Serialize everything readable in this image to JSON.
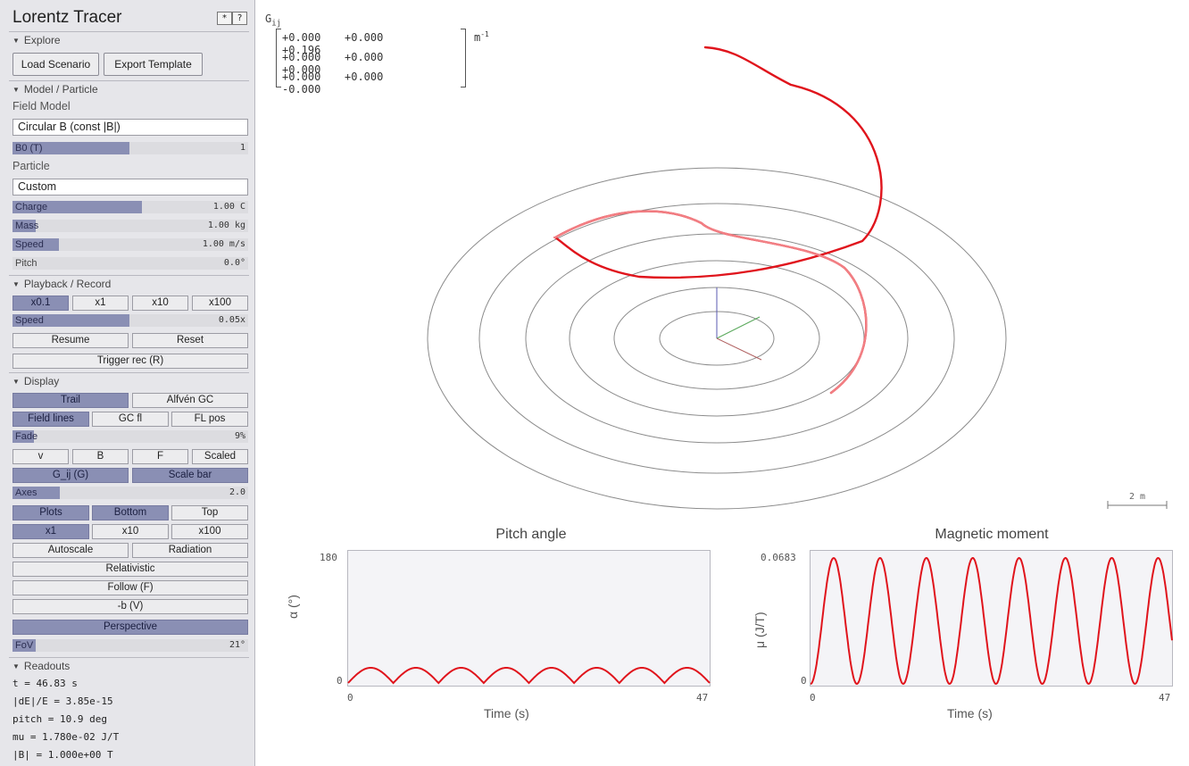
{
  "app": {
    "title": "Lorentz Tracer",
    "btn_star": "*",
    "btn_help": "?"
  },
  "sidebar": {
    "explore": {
      "heading": "Explore",
      "load": "Load Scenario",
      "export": "Export Template"
    },
    "model": {
      "heading": "Model / Particle",
      "field_model_label": "Field Model",
      "field_model_value": "Circular B (const |B|)",
      "b0": {
        "name": "B0 (T)",
        "value": "1",
        "fraction": 0.5
      },
      "particle_label": "Particle",
      "particle_value": "Custom",
      "charge": {
        "name": "Charge",
        "value": "1.00 C",
        "fraction": 0.55
      },
      "mass": {
        "name": "Mass",
        "value": "1.00 kg",
        "fraction": 0.1
      },
      "speed": {
        "name": "Speed",
        "value": "1.00 m/s",
        "fraction": 0.2
      },
      "pitch": {
        "name": "Pitch",
        "value": "0.0°",
        "fraction": 0.0
      }
    },
    "playback": {
      "heading": "Playback / Record",
      "rates": [
        "x0.1",
        "x1",
        "x10",
        "x100"
      ],
      "speed": {
        "name": "Speed",
        "value": "0.05x",
        "fraction": 0.5
      },
      "resume": "Resume",
      "reset": "Reset",
      "trigger": "Trigger rec (R)"
    },
    "display": {
      "heading": "Display",
      "trail": "Trail",
      "alfven": "Alfvén GC",
      "field_lines": "Field lines",
      "gc_fl": "GC fl",
      "fl_pos": "FL pos",
      "fade": {
        "name": "Fade",
        "value": "9%",
        "fraction": 0.09
      },
      "v": "v",
      "b": "B",
      "f": "F",
      "scaled": "Scaled",
      "gij": "G_ij (G)",
      "scale_bar": "Scale bar",
      "axes": {
        "name": "Axes",
        "value": "2.0",
        "fraction": 0.2
      },
      "plots": "Plots",
      "bottom": "Bottom",
      "top": "Top",
      "x1": "x1",
      "x10": "x10",
      "x100": "x100",
      "autoscale": "Autoscale",
      "radiation": "Radiation",
      "relativistic": "Relativistic",
      "follow": "Follow (F)",
      "minus_b": "-b (V)",
      "perspective": "Perspective",
      "fov": {
        "name": "FoV",
        "value": "21°",
        "fraction": 0.1
      }
    },
    "readouts": {
      "heading": "Readouts",
      "lines": [
        "t = 46.83 s",
        "|dE|/E = 3.85e-15",
        "pitch = 10.9 deg",
        "mu = 1.780e-02 J/T",
        "|B| = 1.000e+00 T"
      ]
    }
  },
  "viewport": {
    "gij_label": "G",
    "gij_sub": "ij",
    "matrix": [
      [
        "+0.000",
        "+0.000",
        "+0.196"
      ],
      [
        "+0.000",
        "+0.000",
        "+0.000"
      ],
      [
        "+0.000",
        "+0.000",
        "-0.000"
      ]
    ],
    "unit": "m",
    "unit_exp": "-1",
    "scale_bar_label": "2 m",
    "trail_color": "#e0141c",
    "field_line_color": "#8c8c8c"
  },
  "plots": {
    "pitch": {
      "title": "Pitch angle",
      "ylabel": "α (°)",
      "xlabel": "Time (s)",
      "y_top": "180",
      "y_bottom": "0",
      "x_left": "0",
      "x_right": "47"
    },
    "moment": {
      "title": "Magnetic moment",
      "ylabel": "μ (J/T)",
      "xlabel": "Time (s)",
      "y_top": "0.0683",
      "y_bottom": "0",
      "x_left": "0",
      "x_right": "47"
    }
  }
}
